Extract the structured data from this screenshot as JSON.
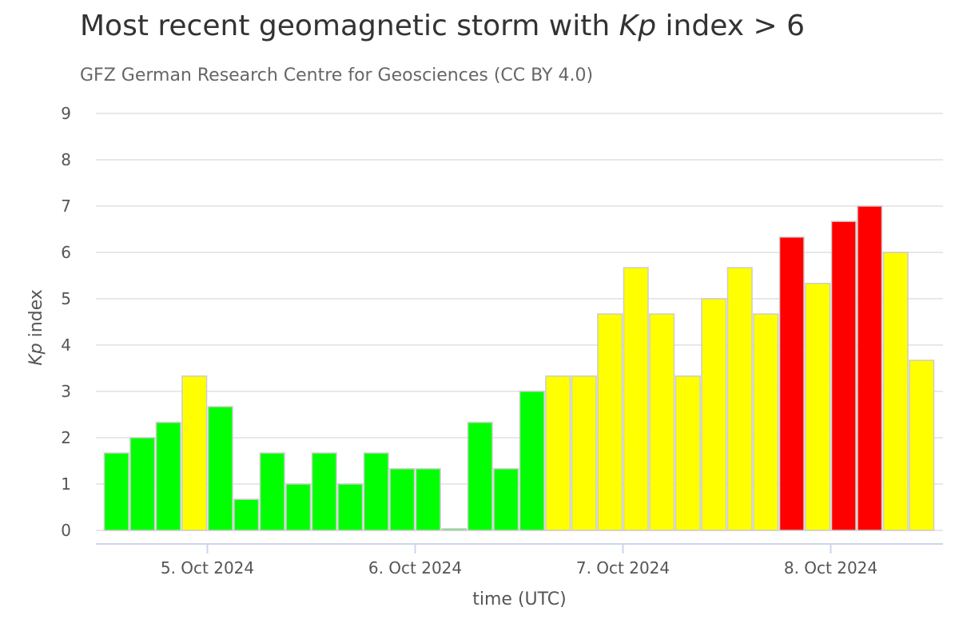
{
  "title": {
    "prefix": "Most recent geomagnetic storm with ",
    "italic": "Kp",
    "suffix": " index > 6"
  },
  "subtitle": "GFZ German Research Centre for Geosciences (CC BY 4.0)",
  "chart_data": {
    "type": "bar",
    "title": "Most recent geomagnetic storm with Kp index > 6",
    "subtitle": "GFZ German Research Centre for Geosciences (CC BY 4.0)",
    "xlabel": "time (UTC)",
    "ylabel_italic": "Kp",
    "ylabel_rest": " index",
    "ylim": [
      0,
      9
    ],
    "yticks": [
      0,
      1,
      2,
      3,
      4,
      5,
      6,
      7,
      8,
      9
    ],
    "x_tick_labels": [
      {
        "label": "5. Oct 2024",
        "bar_index": 4
      },
      {
        "label": "6. Oct 2024",
        "bar_index": 12
      },
      {
        "label": "7. Oct 2024",
        "bar_index": 20
      },
      {
        "label": "8. Oct 2024",
        "bar_index": 28
      }
    ],
    "bar_interval": "3 hours",
    "grid": true,
    "legend": "none",
    "colors": {
      "quiet": "#00ff00",
      "active": "#ffff00",
      "storm": "#ff0000"
    },
    "values": [
      1.67,
      2.0,
      2.33,
      3.33,
      2.67,
      0.67,
      1.67,
      1.0,
      1.67,
      1.0,
      1.67,
      1.33,
      1.33,
      0.0,
      2.33,
      1.33,
      3.0,
      3.33,
      3.33,
      4.67,
      5.67,
      4.67,
      3.33,
      5.0,
      5.67,
      4.67,
      6.33,
      5.33,
      6.67,
      7.0,
      6.0,
      3.67
    ],
    "bar_colors": [
      "#00ff00",
      "#00ff00",
      "#00ff00",
      "#ffff00",
      "#00ff00",
      "#00ff00",
      "#00ff00",
      "#00ff00",
      "#00ff00",
      "#00ff00",
      "#00ff00",
      "#00ff00",
      "#00ff00",
      "#00ff00",
      "#00ff00",
      "#00ff00",
      "#00ff00",
      "#ffff00",
      "#ffff00",
      "#ffff00",
      "#ffff00",
      "#ffff00",
      "#ffff00",
      "#ffff00",
      "#ffff00",
      "#ffff00",
      "#ff0000",
      "#ffff00",
      "#ff0000",
      "#ff0000",
      "#ffff00",
      "#ffff00"
    ]
  }
}
